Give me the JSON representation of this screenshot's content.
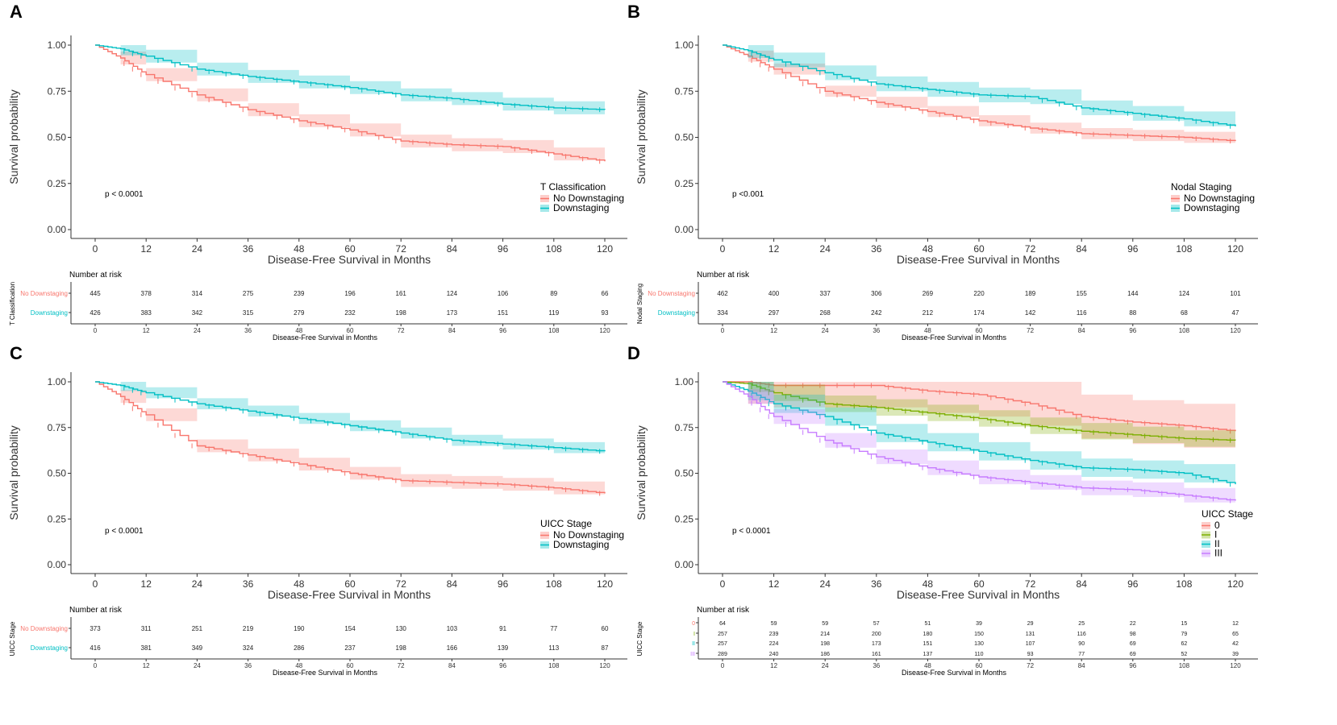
{
  "colors": {
    "no_downstaging": "#F8766D",
    "downstaging": "#00BFC4",
    "stage_0": "#F8766D",
    "stage_I": "#7CAE00",
    "stage_II": "#00BFC4",
    "stage_III": "#C77CFF",
    "axis": "#333333"
  },
  "common": {
    "xlabel": "Disease-Free Survival in Months",
    "ylabel": "Survival probability",
    "risk_title": "Number at risk",
    "x_ticks": [
      "0",
      "12",
      "24",
      "36",
      "48",
      "60",
      "72",
      "84",
      "96",
      "108",
      "120"
    ],
    "y_ticks": [
      "0.00",
      "0.25",
      "0.50",
      "0.75",
      "1.00"
    ]
  },
  "chart_data": [
    {
      "panel": "A",
      "type": "line",
      "title": "",
      "xlabel": "Disease-Free Survival in Months",
      "ylabel": "Survival probability",
      "xlim": [
        0,
        120
      ],
      "ylim": [
        0,
        1
      ],
      "pvalue": "p < 0.0001",
      "legend_title": "T Classification",
      "risk_ylabel": "T Classification",
      "risk_xlabel": "Disease-Free Survival in Months",
      "x": [
        0,
        6,
        12,
        24,
        36,
        48,
        60,
        72,
        84,
        96,
        108,
        120
      ],
      "series": [
        {
          "name": "No Downstaging",
          "color": "#F8766D",
          "values": [
            1.0,
            0.93,
            0.84,
            0.73,
            0.65,
            0.59,
            0.54,
            0.48,
            0.46,
            0.45,
            0.41,
            0.37
          ],
          "band": 0.035,
          "risk": [
            "445",
            "378",
            "314",
            "275",
            "239",
            "196",
            "161",
            "124",
            "106",
            "89",
            "66"
          ]
        },
        {
          "name": "Downstaging",
          "color": "#00BFC4",
          "values": [
            1.0,
            0.98,
            0.94,
            0.87,
            0.83,
            0.8,
            0.77,
            0.73,
            0.71,
            0.68,
            0.66,
            0.65
          ],
          "band": 0.035,
          "risk": [
            "426",
            "383",
            "342",
            "315",
            "279",
            "232",
            "198",
            "173",
            "151",
            "119",
            "93"
          ]
        }
      ]
    },
    {
      "panel": "B",
      "type": "line",
      "title": "",
      "xlabel": "Disease-Free Survival in Months",
      "ylabel": "Survival probability",
      "xlim": [
        0,
        120
      ],
      "ylim": [
        0,
        1
      ],
      "pvalue": "p <0.001",
      "legend_title": "Nodal Staging",
      "risk_ylabel": "Nodal Staging",
      "risk_xlabel": "Disease-Free Survival in Months",
      "x": [
        0,
        6,
        12,
        24,
        36,
        48,
        60,
        72,
        84,
        96,
        108,
        120
      ],
      "series": [
        {
          "name": "No Downstaging",
          "color": "#F8766D",
          "values": [
            1.0,
            0.94,
            0.87,
            0.75,
            0.69,
            0.64,
            0.59,
            0.55,
            0.52,
            0.51,
            0.5,
            0.48
          ],
          "band": 0.03,
          "risk": [
            "462",
            "400",
            "337",
            "306",
            "269",
            "220",
            "189",
            "155",
            "144",
            "124",
            "101"
          ]
        },
        {
          "name": "Downstaging",
          "color": "#00BFC4",
          "values": [
            1.0,
            0.97,
            0.92,
            0.85,
            0.79,
            0.76,
            0.73,
            0.72,
            0.66,
            0.63,
            0.6,
            0.56
          ],
          "band": 0.04,
          "risk": [
            "334",
            "297",
            "268",
            "242",
            "212",
            "174",
            "142",
            "116",
            "88",
            "68",
            "47"
          ]
        }
      ]
    },
    {
      "panel": "C",
      "type": "line",
      "title": "",
      "xlabel": "Disease-Free Survival in Months",
      "ylabel": "Survival probability",
      "xlim": [
        0,
        120
      ],
      "ylim": [
        0,
        1
      ],
      "pvalue": "p < 0.0001",
      "legend_title": "UICC Stage",
      "risk_ylabel": "UICC Stage",
      "risk_xlabel": "Disease-Free Survival in Months",
      "x": [
        0,
        6,
        12,
        24,
        36,
        48,
        60,
        72,
        84,
        96,
        108,
        120
      ],
      "series": [
        {
          "name": "No Downstaging",
          "color": "#F8766D",
          "values": [
            1.0,
            0.92,
            0.82,
            0.65,
            0.6,
            0.55,
            0.5,
            0.46,
            0.45,
            0.44,
            0.42,
            0.39
          ],
          "band": 0.035,
          "risk": [
            "373",
            "311",
            "251",
            "219",
            "190",
            "154",
            "130",
            "103",
            "91",
            "77",
            "60"
          ]
        },
        {
          "name": "Downstaging",
          "color": "#00BFC4",
          "values": [
            1.0,
            0.98,
            0.94,
            0.88,
            0.84,
            0.8,
            0.76,
            0.72,
            0.68,
            0.66,
            0.64,
            0.62
          ],
          "band": 0.03,
          "risk": [
            "416",
            "381",
            "349",
            "324",
            "286",
            "237",
            "198",
            "166",
            "139",
            "113",
            "87"
          ]
        }
      ]
    },
    {
      "panel": "D",
      "type": "line",
      "title": "",
      "xlabel": "Disease-Free Survival in Months",
      "ylabel": "Survival probability",
      "xlim": [
        0,
        120
      ],
      "ylim": [
        0,
        1
      ],
      "pvalue": "p < 0.0001",
      "legend_title": "UICC Stage",
      "risk_ylabel": "UICC Stage",
      "risk_xlabel": "Disease-Free Survival in Months",
      "x": [
        0,
        6,
        12,
        24,
        36,
        48,
        60,
        72,
        84,
        96,
        108,
        120
      ],
      "series": [
        {
          "name": "0",
          "color": "#F8766D",
          "values": [
            1.0,
            1.0,
            0.98,
            0.98,
            0.98,
            0.95,
            0.93,
            0.88,
            0.81,
            0.78,
            0.76,
            0.73
          ],
          "band": 0.12,
          "risk": [
            "64",
            "59",
            "59",
            "57",
            "51",
            "39",
            "29",
            "25",
            "22",
            "15",
            "12"
          ]
        },
        {
          "name": "I",
          "color": "#7CAE00",
          "values": [
            1.0,
            0.99,
            0.94,
            0.88,
            0.86,
            0.83,
            0.8,
            0.76,
            0.73,
            0.71,
            0.69,
            0.68
          ],
          "band": 0.045,
          "risk": [
            "257",
            "239",
            "214",
            "200",
            "180",
            "150",
            "131",
            "116",
            "98",
            "79",
            "65"
          ]
        },
        {
          "name": "II",
          "color": "#00BFC4",
          "values": [
            1.0,
            0.95,
            0.88,
            0.81,
            0.72,
            0.67,
            0.62,
            0.57,
            0.53,
            0.52,
            0.5,
            0.44
          ],
          "band": 0.05,
          "risk": [
            "257",
            "224",
            "198",
            "173",
            "151",
            "130",
            "107",
            "90",
            "69",
            "62",
            "42"
          ]
        },
        {
          "name": "III",
          "color": "#C77CFF",
          "values": [
            1.0,
            0.92,
            0.81,
            0.68,
            0.59,
            0.53,
            0.48,
            0.45,
            0.42,
            0.41,
            0.38,
            0.35
          ],
          "band": 0.04,
          "risk": [
            "289",
            "240",
            "186",
            "161",
            "137",
            "110",
            "93",
            "77",
            "69",
            "52",
            "39"
          ]
        }
      ]
    }
  ]
}
